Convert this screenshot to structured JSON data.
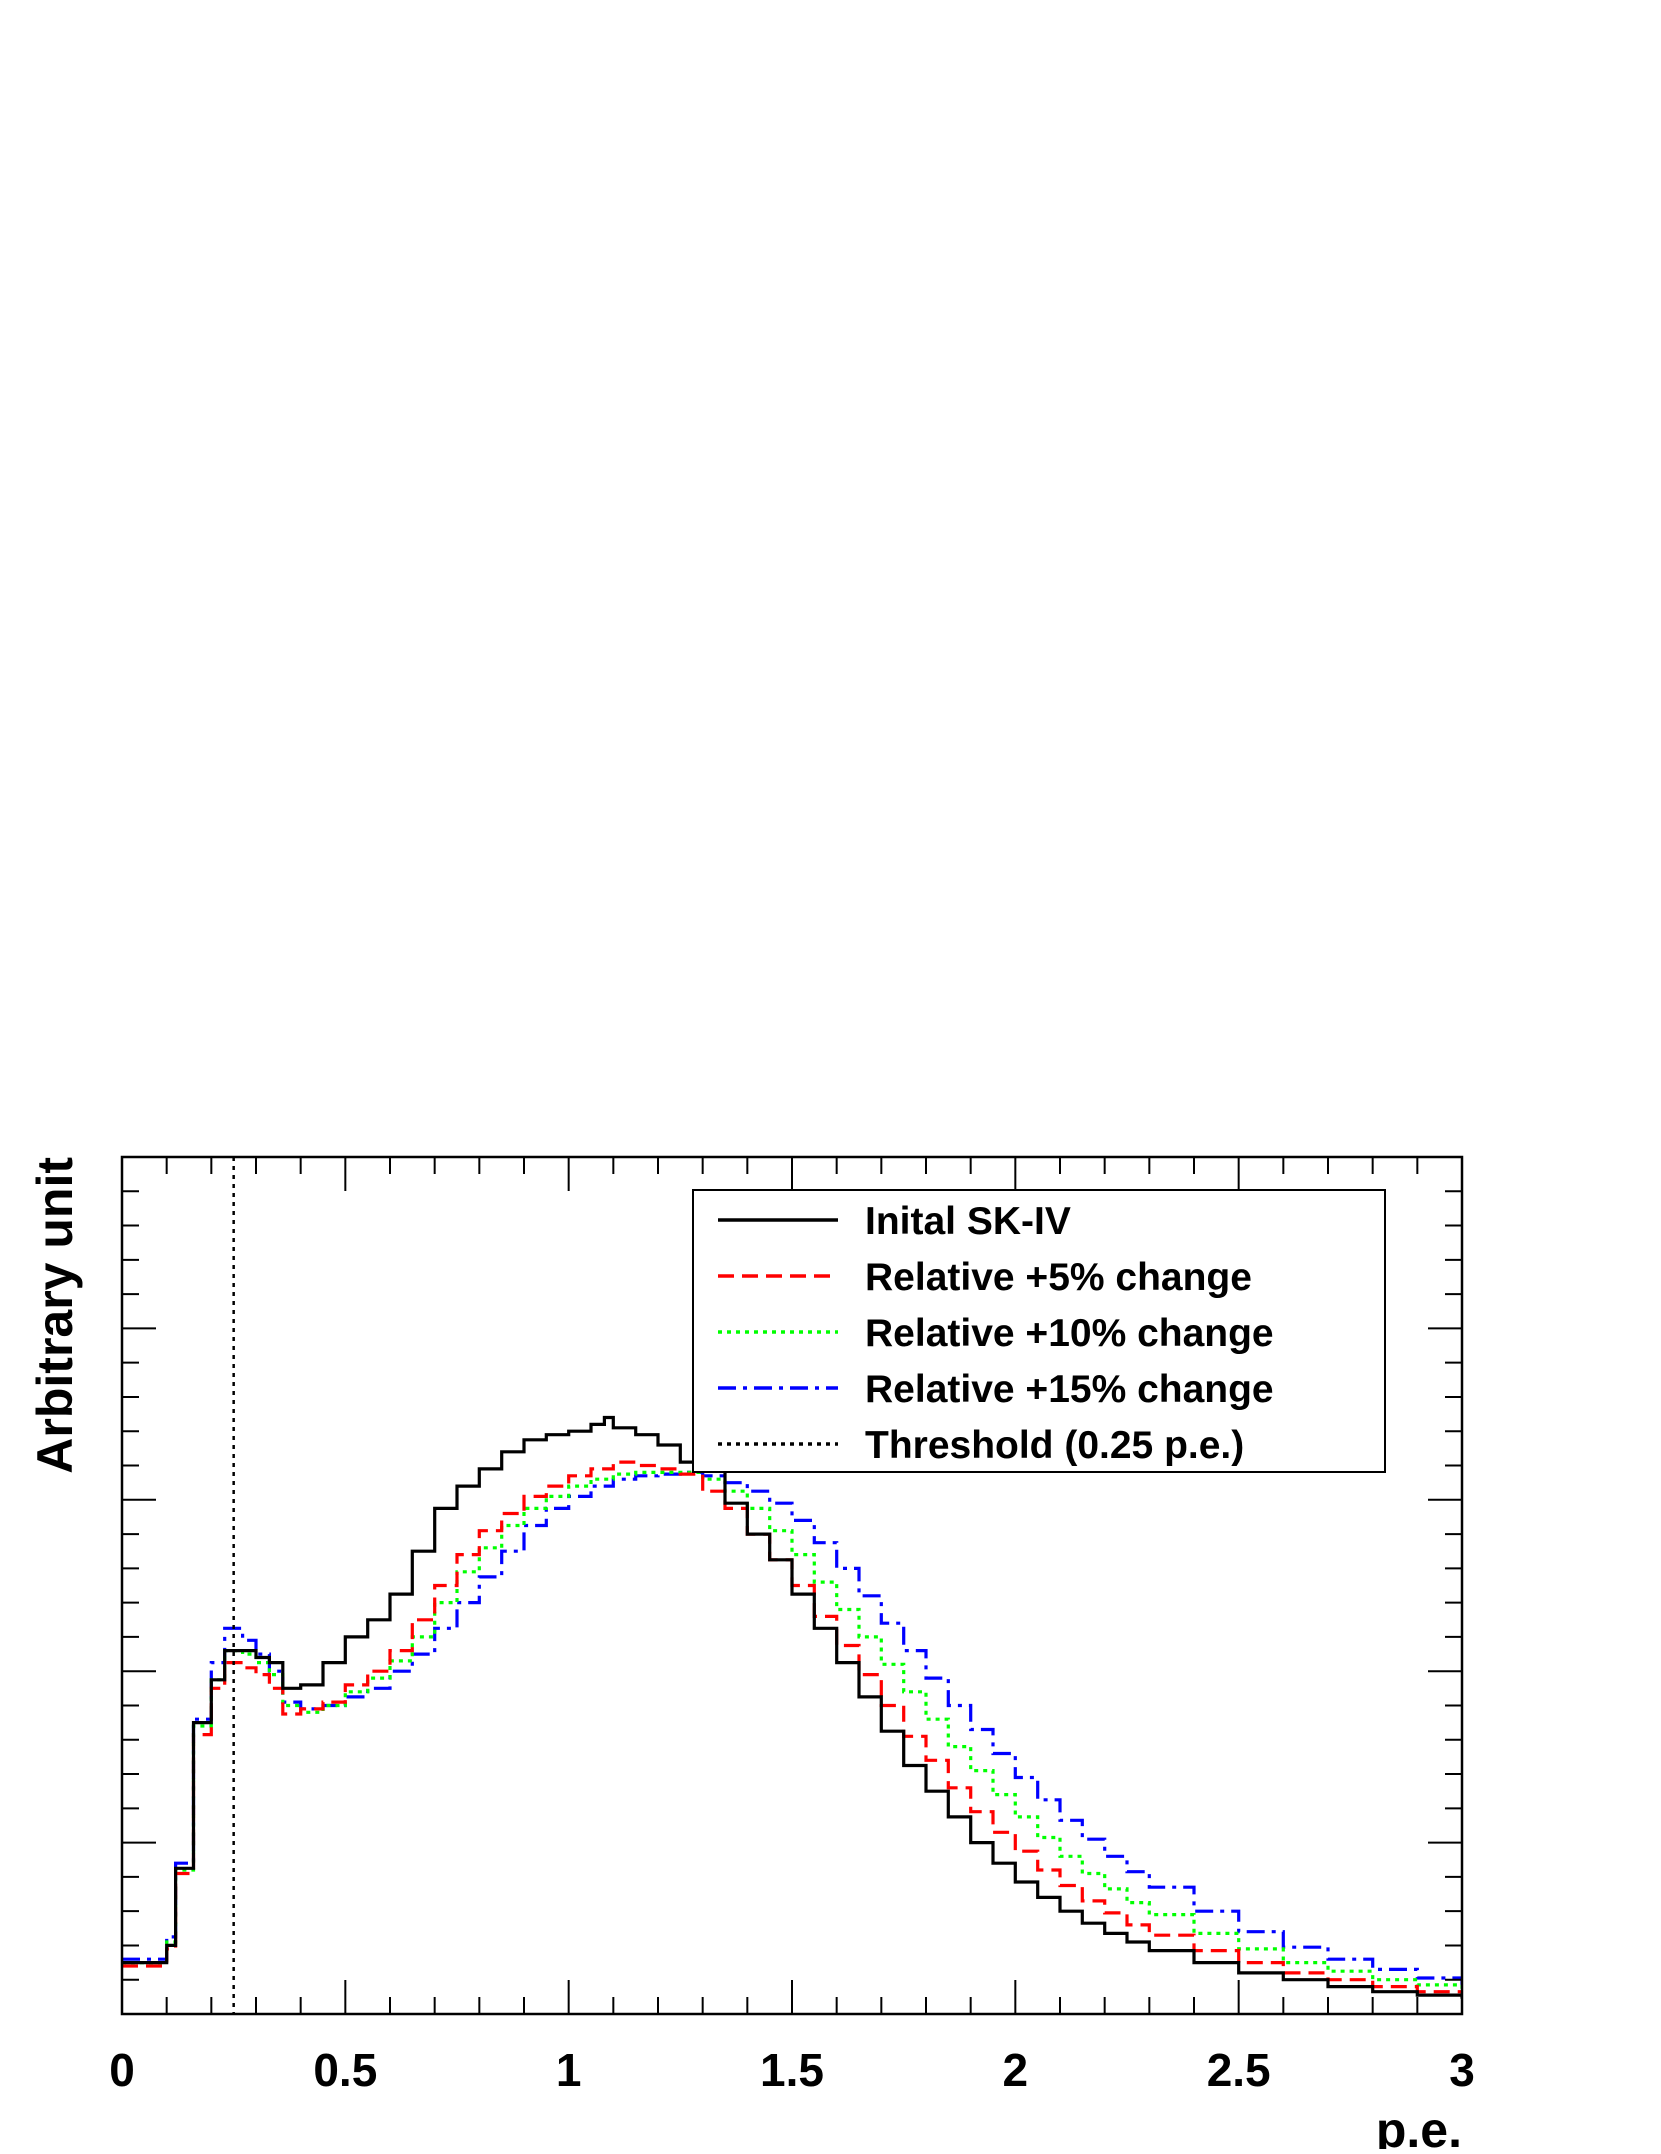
{
  "chart_data": {
    "type": "line",
    "title": "",
    "xlabel": "p.e.",
    "ylabel": "Arbitrary unit",
    "xlim": [
      0,
      3
    ],
    "ylim": [
      0,
      5
    ],
    "x_ticks": [
      "0",
      "0.5",
      "1",
      "1.5",
      "2",
      "2.5",
      "3"
    ],
    "y_tick_labels_shown": false,
    "grid": false,
    "legend_position": "top-right",
    "threshold": {
      "x": 0.25,
      "label": "Threshold (0.25 p.e.)",
      "color": "#000000"
    },
    "series": [
      {
        "name": "Inital SK-IV",
        "color": "#000000",
        "style": "solid",
        "points": [
          [
            0,
            0.3
          ],
          [
            0.1,
            0.4
          ],
          [
            0.12,
            0.85
          ],
          [
            0.16,
            1.7
          ],
          [
            0.2,
            1.95
          ],
          [
            0.23,
            2.12
          ],
          [
            0.27,
            2.12
          ],
          [
            0.3,
            2.08
          ],
          [
            0.33,
            2.05
          ],
          [
            0.36,
            1.9
          ],
          [
            0.4,
            1.92
          ],
          [
            0.45,
            2.05
          ],
          [
            0.5,
            2.2
          ],
          [
            0.55,
            2.3
          ],
          [
            0.6,
            2.45
          ],
          [
            0.65,
            2.7
          ],
          [
            0.7,
            2.95
          ],
          [
            0.75,
            3.08
          ],
          [
            0.8,
            3.18
          ],
          [
            0.85,
            3.28
          ],
          [
            0.9,
            3.35
          ],
          [
            0.95,
            3.38
          ],
          [
            1.0,
            3.4
          ],
          [
            1.05,
            3.44
          ],
          [
            1.08,
            3.48
          ],
          [
            1.1,
            3.42
          ],
          [
            1.15,
            3.38
          ],
          [
            1.2,
            3.32
          ],
          [
            1.25,
            3.22
          ],
          [
            1.3,
            3.18
          ],
          [
            1.35,
            2.98
          ],
          [
            1.4,
            2.8
          ],
          [
            1.45,
            2.65
          ],
          [
            1.5,
            2.45
          ],
          [
            1.55,
            2.25
          ],
          [
            1.6,
            2.05
          ],
          [
            1.65,
            1.85
          ],
          [
            1.7,
            1.65
          ],
          [
            1.75,
            1.45
          ],
          [
            1.8,
            1.3
          ],
          [
            1.85,
            1.15
          ],
          [
            1.9,
            1.0
          ],
          [
            1.95,
            0.88
          ],
          [
            2.0,
            0.77
          ],
          [
            2.05,
            0.68
          ],
          [
            2.1,
            0.6
          ],
          [
            2.15,
            0.53
          ],
          [
            2.2,
            0.47
          ],
          [
            2.25,
            0.42
          ],
          [
            2.3,
            0.37
          ],
          [
            2.4,
            0.3
          ],
          [
            2.5,
            0.24
          ],
          [
            2.6,
            0.2
          ],
          [
            2.7,
            0.16
          ],
          [
            2.8,
            0.13
          ],
          [
            2.9,
            0.11
          ],
          [
            3.0,
            0.09
          ]
        ]
      },
      {
        "name": "Relative +5% change",
        "color": "#ff0000",
        "style": "dashed",
        "points": [
          [
            0,
            0.28
          ],
          [
            0.1,
            0.38
          ],
          [
            0.12,
            0.82
          ],
          [
            0.16,
            1.63
          ],
          [
            0.2,
            1.9
          ],
          [
            0.23,
            2.05
          ],
          [
            0.27,
            2.02
          ],
          [
            0.3,
            1.98
          ],
          [
            0.33,
            1.9
          ],
          [
            0.36,
            1.75
          ],
          [
            0.4,
            1.78
          ],
          [
            0.45,
            1.82
          ],
          [
            0.5,
            1.92
          ],
          [
            0.55,
            2.0
          ],
          [
            0.6,
            2.12
          ],
          [
            0.65,
            2.3
          ],
          [
            0.7,
            2.5
          ],
          [
            0.75,
            2.68
          ],
          [
            0.8,
            2.82
          ],
          [
            0.85,
            2.92
          ],
          [
            0.9,
            3.02
          ],
          [
            0.95,
            3.08
          ],
          [
            1.0,
            3.14
          ],
          [
            1.05,
            3.18
          ],
          [
            1.1,
            3.22
          ],
          [
            1.15,
            3.2
          ],
          [
            1.2,
            3.18
          ],
          [
            1.25,
            3.15
          ],
          [
            1.3,
            3.05
          ],
          [
            1.35,
            2.95
          ],
          [
            1.4,
            2.8
          ],
          [
            1.45,
            2.65
          ],
          [
            1.5,
            2.5
          ],
          [
            1.55,
            2.32
          ],
          [
            1.6,
            2.15
          ],
          [
            1.65,
            1.98
          ],
          [
            1.7,
            1.8
          ],
          [
            1.75,
            1.62
          ],
          [
            1.8,
            1.48
          ],
          [
            1.85,
            1.32
          ],
          [
            1.9,
            1.18
          ],
          [
            1.95,
            1.06
          ],
          [
            2.0,
            0.95
          ],
          [
            2.05,
            0.84
          ],
          [
            2.1,
            0.75
          ],
          [
            2.15,
            0.66
          ],
          [
            2.2,
            0.59
          ],
          [
            2.25,
            0.52
          ],
          [
            2.3,
            0.46
          ],
          [
            2.4,
            0.37
          ],
          [
            2.5,
            0.3
          ],
          [
            2.6,
            0.24
          ],
          [
            2.7,
            0.2
          ],
          [
            2.8,
            0.16
          ],
          [
            2.9,
            0.13
          ],
          [
            3.0,
            0.1
          ]
        ]
      },
      {
        "name": "Relative +10% change",
        "color": "#00ff00",
        "style": "dotted",
        "points": [
          [
            0,
            0.3
          ],
          [
            0.1,
            0.42
          ],
          [
            0.12,
            0.84
          ],
          [
            0.16,
            1.68
          ],
          [
            0.2,
            1.95
          ],
          [
            0.23,
            2.12
          ],
          [
            0.27,
            2.1
          ],
          [
            0.3,
            2.05
          ],
          [
            0.33,
            1.98
          ],
          [
            0.36,
            1.8
          ],
          [
            0.4,
            1.76
          ],
          [
            0.45,
            1.8
          ],
          [
            0.5,
            1.88
          ],
          [
            0.55,
            1.96
          ],
          [
            0.6,
            2.06
          ],
          [
            0.65,
            2.2
          ],
          [
            0.7,
            2.4
          ],
          [
            0.75,
            2.58
          ],
          [
            0.8,
            2.72
          ],
          [
            0.85,
            2.85
          ],
          [
            0.9,
            2.95
          ],
          [
            0.95,
            3.02
          ],
          [
            1.0,
            3.08
          ],
          [
            1.05,
            3.12
          ],
          [
            1.1,
            3.15
          ],
          [
            1.15,
            3.16
          ],
          [
            1.2,
            3.16
          ],
          [
            1.25,
            3.16
          ],
          [
            1.3,
            3.12
          ],
          [
            1.35,
            3.05
          ],
          [
            1.4,
            2.95
          ],
          [
            1.45,
            2.82
          ],
          [
            1.5,
            2.68
          ],
          [
            1.55,
            2.52
          ],
          [
            1.6,
            2.36
          ],
          [
            1.65,
            2.2
          ],
          [
            1.7,
            2.04
          ],
          [
            1.75,
            1.88
          ],
          [
            1.8,
            1.72
          ],
          [
            1.85,
            1.56
          ],
          [
            1.9,
            1.42
          ],
          [
            1.95,
            1.28
          ],
          [
            2.0,
            1.15
          ],
          [
            2.05,
            1.03
          ],
          [
            2.1,
            0.92
          ],
          [
            2.15,
            0.82
          ],
          [
            2.2,
            0.73
          ],
          [
            2.25,
            0.65
          ],
          [
            2.3,
            0.58
          ],
          [
            2.4,
            0.47
          ],
          [
            2.5,
            0.38
          ],
          [
            2.6,
            0.3
          ],
          [
            2.7,
            0.25
          ],
          [
            2.8,
            0.2
          ],
          [
            2.9,
            0.17
          ],
          [
            3.0,
            0.14
          ]
        ]
      },
      {
        "name": "Relative +15% change",
        "color": "#0000ff",
        "style": "dashdot",
        "points": [
          [
            0,
            0.32
          ],
          [
            0.1,
            0.45
          ],
          [
            0.12,
            0.88
          ],
          [
            0.16,
            1.72
          ],
          [
            0.2,
            2.05
          ],
          [
            0.23,
            2.25
          ],
          [
            0.27,
            2.18
          ],
          [
            0.3,
            2.1
          ],
          [
            0.33,
            2.0
          ],
          [
            0.36,
            1.82
          ],
          [
            0.4,
            1.78
          ],
          [
            0.45,
            1.8
          ],
          [
            0.5,
            1.85
          ],
          [
            0.55,
            1.9
          ],
          [
            0.6,
            2.0
          ],
          [
            0.65,
            2.1
          ],
          [
            0.7,
            2.25
          ],
          [
            0.75,
            2.4
          ],
          [
            0.8,
            2.55
          ],
          [
            0.85,
            2.7
          ],
          [
            0.9,
            2.85
          ],
          [
            0.95,
            2.95
          ],
          [
            1.0,
            3.02
          ],
          [
            1.05,
            3.08
          ],
          [
            1.1,
            3.12
          ],
          [
            1.15,
            3.14
          ],
          [
            1.2,
            3.15
          ],
          [
            1.25,
            3.16
          ],
          [
            1.3,
            3.14
          ],
          [
            1.35,
            3.1
          ],
          [
            1.4,
            3.05
          ],
          [
            1.45,
            2.98
          ],
          [
            1.5,
            2.88
          ],
          [
            1.55,
            2.75
          ],
          [
            1.6,
            2.6
          ],
          [
            1.65,
            2.44
          ],
          [
            1.7,
            2.28
          ],
          [
            1.75,
            2.12
          ],
          [
            1.8,
            1.96
          ],
          [
            1.85,
            1.8
          ],
          [
            1.9,
            1.66
          ],
          [
            1.95,
            1.52
          ],
          [
            2.0,
            1.38
          ],
          [
            2.05,
            1.25
          ],
          [
            2.1,
            1.13
          ],
          [
            2.15,
            1.02
          ],
          [
            2.2,
            0.92
          ],
          [
            2.25,
            0.83
          ],
          [
            2.3,
            0.74
          ],
          [
            2.4,
            0.6
          ],
          [
            2.5,
            0.48
          ],
          [
            2.6,
            0.39
          ],
          [
            2.7,
            0.32
          ],
          [
            2.8,
            0.26
          ],
          [
            2.9,
            0.21
          ],
          [
            3.0,
            0.17
          ]
        ]
      }
    ]
  }
}
